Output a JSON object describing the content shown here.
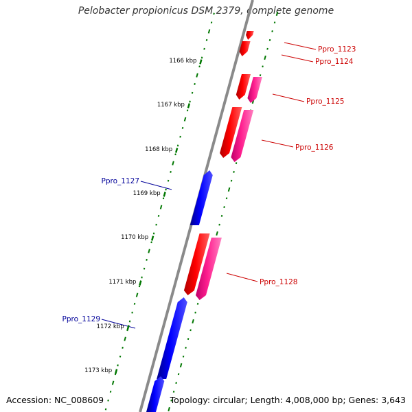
{
  "title": "Pelobacter propionicus DSM 2379, complete genome",
  "footer": {
    "accession": "Accession: NC_008609",
    "summary": "Topology: circular; Length: 4,008,000 bp; Genes: 3,643"
  },
  "colors": {
    "backbone": "#8a8a8a",
    "ticks": "#007700",
    "forward_cds": "#ff0000",
    "forward_cds_alt": "#ff1493",
    "reverse_cds": "#0000ff",
    "forward_label": "#cc0000",
    "reverse_label": "#000099"
  },
  "scale_ticks": [
    "1166 kbp",
    "1167 kbp",
    "1168 kbp",
    "1169 kbp",
    "1170 kbp",
    "1171 kbp",
    "1172 kbp",
    "1173 kbp"
  ],
  "genes": [
    {
      "label": "Ppro_1123",
      "strand": "+"
    },
    {
      "label": "Ppro_1124",
      "strand": "+"
    },
    {
      "label": "Ppro_1125",
      "strand": "+"
    },
    {
      "label": "Ppro_1126",
      "strand": "+"
    },
    {
      "label": "Ppro_1127",
      "strand": "-"
    },
    {
      "label": "Ppro_1128",
      "strand": "+"
    },
    {
      "label": "Ppro_1129",
      "strand": "-"
    }
  ]
}
